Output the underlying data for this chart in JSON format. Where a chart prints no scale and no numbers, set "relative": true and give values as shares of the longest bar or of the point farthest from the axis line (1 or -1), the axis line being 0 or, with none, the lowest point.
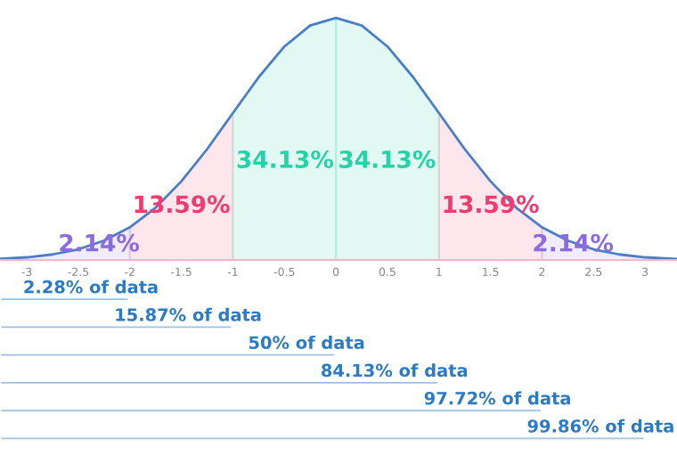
{
  "chart_data": [
    {
      "type": "area",
      "relative": true,
      "xlim": [
        -3.26,
        3.31
      ],
      "xticks": [
        -3,
        -2.5,
        -2,
        -1.5,
        -1,
        -0.5,
        0,
        0.5,
        1,
        1.5,
        2,
        2.5,
        3
      ],
      "series": [
        {
          "color": "#8a6be0",
          "x": [
            -3.26,
            -3,
            -2.75,
            -2.5,
            -2.25,
            -2
          ],
          "values": [
            0.005,
            0.011,
            0.023,
            0.044,
            0.08,
            0.135
          ]
        },
        {
          "color": "#f03a70",
          "x": [
            -2,
            -1.75,
            -1.5,
            -1.25,
            -1
          ],
          "values": [
            0.135,
            0.216,
            0.325,
            0.458,
            0.607
          ]
        },
        {
          "color": "#22d3a5",
          "x": [
            -1,
            -0.75,
            -0.5,
            -0.25,
            0
          ],
          "values": [
            0.607,
            0.755,
            0.882,
            0.969,
            1
          ]
        },
        {
          "color": "#22d3a5",
          "x": [
            0,
            0.25,
            0.5,
            0.75,
            1
          ],
          "values": [
            1,
            0.969,
            0.882,
            0.755,
            0.607
          ]
        },
        {
          "color": "#f03a70",
          "x": [
            1,
            1.25,
            1.5,
            1.75,
            2
          ],
          "values": [
            0.607,
            0.458,
            0.325,
            0.216,
            0.135
          ]
        },
        {
          "color": "#8a6be0",
          "x": [
            2,
            2.25,
            2.5,
            2.75,
            3,
            3.31
          ],
          "values": [
            0.135,
            0.08,
            0.044,
            0.023,
            0.011,
            0.004
          ]
        },
        {
          "type": "line",
          "color": "#4a7fc8",
          "x": [
            -3.26,
            -3,
            -2.75,
            -2.5,
            -2.25,
            -2,
            -1.75,
            -1.5,
            -1.25,
            -1,
            -0.75,
            -0.5,
            -0.25,
            0,
            0.25,
            0.5,
            0.75,
            1,
            1.25,
            1.5,
            1.75,
            2,
            2.25,
            2.5,
            2.75,
            3,
            3.31
          ],
          "values": [
            0.005,
            0.011,
            0.023,
            0.044,
            0.08,
            0.135,
            0.216,
            0.325,
            0.458,
            0.607,
            0.755,
            0.882,
            0.969,
            1,
            0.969,
            0.882,
            0.755,
            0.607,
            0.458,
            0.325,
            0.216,
            0.135,
            0.08,
            0.044,
            0.023,
            0.011,
            0.004
          ]
        }
      ],
      "annotations": [
        "2.14%",
        "13.59%",
        "34.13%",
        "34.13%",
        "13.59%",
        "2.14%"
      ]
    },
    {
      "type": "bar",
      "orientation": "horizontal",
      "relative": true,
      "categories": [
        null,
        null,
        null,
        null,
        null,
        null
      ],
      "values": [
        0.2,
        0.36,
        0.52,
        0.68,
        0.84,
        1
      ],
      "color": "#9cc3e6",
      "annotations": [
        "2.28% of data",
        "15.87% of data",
        "50% of data",
        "84.13% of data",
        "97.72% of data",
        "99.86% of data"
      ]
    }
  ]
}
